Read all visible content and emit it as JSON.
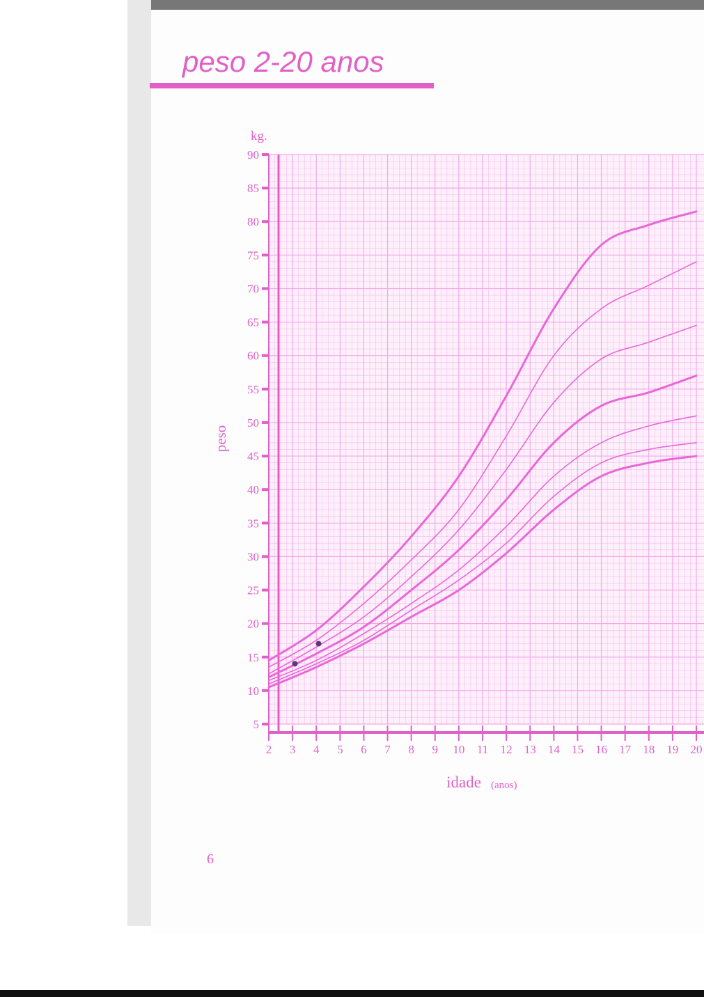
{
  "chart_data": {
    "type": "line",
    "title": "peso 2-20 anos",
    "y_unit": "kg.",
    "ylabel": "peso",
    "xlabel": "idade",
    "xlabel_unit": "(anos)",
    "page_number": "6",
    "x": [
      2,
      4,
      6,
      8,
      10,
      12,
      14,
      16,
      18,
      20
    ],
    "series": [
      {
        "color": "#e868d8",
        "line_width": 3,
        "values": [
          14.5,
          19,
          25.5,
          33,
          42,
          54,
          67,
          76.5,
          79.5,
          81.5
        ]
      },
      {
        "color": "#e868d8",
        "line_width": 1.6,
        "values": [
          13.5,
          17.5,
          23,
          29.5,
          37,
          48,
          60,
          67,
          70.5,
          74
        ]
      },
      {
        "color": "#e868d8",
        "line_width": 1.6,
        "values": [
          12.5,
          16.5,
          21,
          27,
          34,
          43,
          53,
          59.5,
          62,
          64.5
        ]
      },
      {
        "color": "#e868d8",
        "line_width": 3,
        "values": [
          12,
          15.5,
          19.5,
          25,
          31,
          38.5,
          47,
          52.5,
          54.5,
          57
        ]
      },
      {
        "color": "#e868d8",
        "line_width": 1.6,
        "values": [
          11.5,
          14.5,
          18.5,
          23,
          28,
          34.5,
          42,
          47,
          49.5,
          51
        ]
      },
      {
        "color": "#e868d8",
        "line_width": 1.6,
        "values": [
          11,
          14,
          17.5,
          22,
          26.5,
          32,
          39,
          44,
          46,
          47
        ]
      },
      {
        "color": "#e868d8",
        "line_width": 3,
        "values": [
          10.5,
          13.5,
          17,
          21,
          25,
          30.5,
          37,
          42,
          44,
          45
        ]
      }
    ],
    "points": {
      "color": "#5a3a7a",
      "x": [
        3.1,
        4.1
      ],
      "values": [
        14,
        17
      ]
    },
    "xlim": [
      2,
      20
    ],
    "ylim": [
      5,
      90
    ],
    "xticks": [
      2,
      3,
      4,
      5,
      6,
      7,
      8,
      9,
      10,
      11,
      12,
      13,
      14,
      15,
      16,
      17,
      18,
      19,
      20
    ],
    "yticks": [
      5,
      10,
      15,
      20,
      25,
      30,
      35,
      40,
      45,
      50,
      55,
      60,
      65,
      70,
      75,
      80,
      85,
      90
    ],
    "grid": true,
    "minor_grid": true,
    "axis_color": "#e060c8",
    "grid_color": "#f4a8e8"
  }
}
